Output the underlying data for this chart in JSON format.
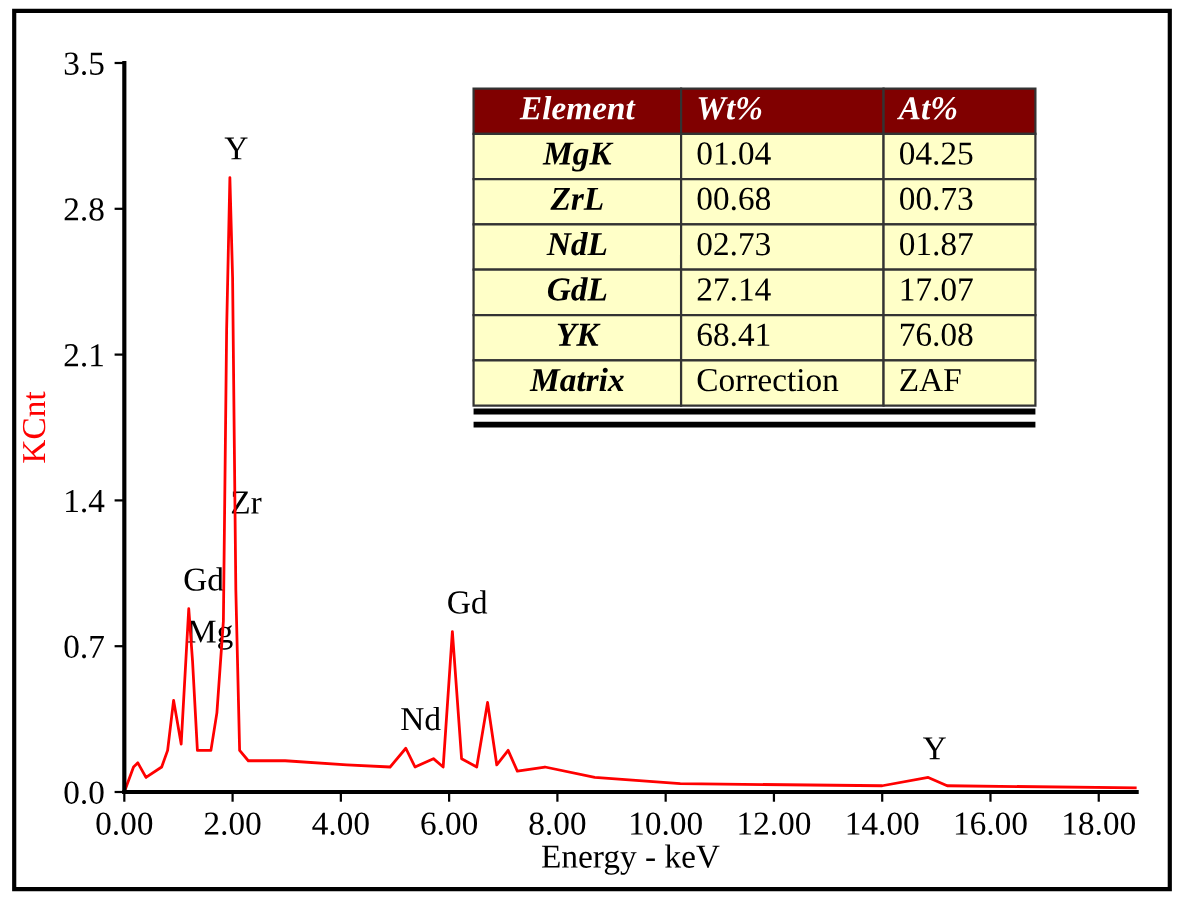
{
  "chart_data": {
    "type": "line",
    "xlabel": "Energy - keV",
    "ylabel": "KCnt",
    "x": [
      0.0,
      0.17,
      0.25,
      0.4,
      0.69,
      0.8,
      0.91,
      1.05,
      1.19,
      1.26,
      1.35,
      1.6,
      1.71,
      1.83,
      1.89,
      1.95,
      2.0,
      2.06,
      2.13,
      2.29,
      2.97,
      4.11,
      4.91,
      5.2,
      5.37,
      5.71,
      5.89,
      6.06,
      6.23,
      6.51,
      6.71,
      6.88,
      7.09,
      7.26,
      7.77,
      8.69,
      10.27,
      14.0,
      14.85,
      15.2,
      18.7
    ],
    "series": [
      {
        "color": "#ff0000",
        "values": [
          0.0,
          0.12,
          0.14,
          0.07,
          0.12,
          0.2,
          0.44,
          0.23,
          0.88,
          0.63,
          0.2,
          0.2,
          0.38,
          0.82,
          2.22,
          2.95,
          2.47,
          0.97,
          0.2,
          0.15,
          0.15,
          0.13,
          0.12,
          0.21,
          0.12,
          0.16,
          0.12,
          0.77,
          0.16,
          0.12,
          0.43,
          0.13,
          0.2,
          0.1,
          0.12,
          0.07,
          0.04,
          0.03,
          0.07,
          0.03,
          0.02
        ]
      }
    ],
    "xlim": [
      0,
      18.7
    ],
    "xticks": [
      {
        "value": 0,
        "label": "0.00"
      },
      {
        "value": 2,
        "label": "2.00"
      },
      {
        "value": 4,
        "label": "4.00"
      },
      {
        "value": 6,
        "label": "6.00"
      },
      {
        "value": 8,
        "label": "8.00"
      },
      {
        "value": 10,
        "label": "10.00"
      },
      {
        "value": 12,
        "label": "12.00"
      },
      {
        "value": 14,
        "label": "14.00"
      },
      {
        "value": 16,
        "label": "16.00"
      },
      {
        "value": 18,
        "label": "18.00"
      }
    ],
    "ylim": [
      0,
      3.5
    ],
    "yticks": [
      {
        "value": 0,
        "label": "0.0"
      },
      0.7,
      1.4,
      2.1,
      2.8,
      3.5
    ],
    "grid": false,
    "legend": false,
    "marker": "none",
    "line_style": "solid",
    "annotations": [
      {
        "text": "Y",
        "x": 1.95,
        "y": 2.95
      },
      {
        "text": "Zr",
        "x": 2.06,
        "y": 1.25
      },
      {
        "text": "Gd",
        "x": 1.19,
        "y": 0.88
      },
      {
        "text": "Mg",
        "x": 1.26,
        "y": 0.63
      },
      {
        "text": "Nd",
        "x": 5.2,
        "y": 0.21
      },
      {
        "text": "Gd",
        "x": 6.06,
        "y": 0.77
      },
      {
        "text": "Y",
        "x": 14.85,
        "y": 0.07
      },
      "Element",
      "Wt%",
      "At%",
      "MgK",
      "01.04",
      "04.25",
      "ZrL",
      "00.68",
      "00.73",
      "NdL",
      "02.73",
      "01.87",
      "GdL",
      "27.14",
      "17.07",
      "YK",
      "68.41",
      "76.08",
      "Matrix",
      "Correction",
      "ZAF"
    ]
  }
}
